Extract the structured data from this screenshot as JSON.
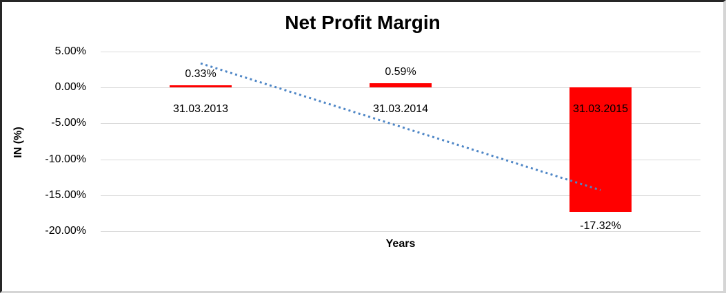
{
  "window": {
    "background": "#ffffff",
    "frame_dark_color": "#262626",
    "frame_light_color": "#d5d5d5"
  },
  "chart_data": {
    "type": "bar",
    "title": "Net Profit Margin",
    "xlabel": "Years",
    "ylabel": "IN (%)",
    "categories": [
      "31.03.2013",
      "31.03.2014",
      "31.03.2015"
    ],
    "series": [
      {
        "name": "Net Profit Margin",
        "values": [
          0.33,
          0.59,
          -17.32
        ]
      }
    ],
    "data_labels": [
      "0.33%",
      "0.59%",
      "-17.32%"
    ],
    "y_ticks": [
      {
        "label": "5.00%",
        "value": 5
      },
      {
        "label": "0.00%",
        "value": 0
      },
      {
        "label": "-5.00%",
        "value": -5
      },
      {
        "label": "-10.00%",
        "value": -10
      },
      {
        "label": "-15.00%",
        "value": -15
      },
      {
        "label": "-20.00%",
        "value": -20
      }
    ],
    "ylim": [
      -20,
      5
    ],
    "grid": true,
    "legend": false,
    "bar_color": "#ff0000",
    "gridline_color": "#d9d9d9",
    "text_color": "#000000",
    "trendline": {
      "type": "linear",
      "style": "dotted",
      "color": "#4e86c6",
      "start_value": 3.36,
      "end_value": -14.29
    }
  }
}
